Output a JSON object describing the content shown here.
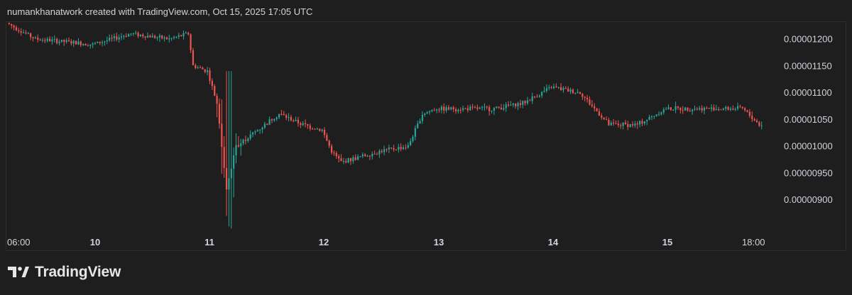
{
  "header": {
    "caption": "numankhanatwork created with TradingView.com, Oct 15, 2025 17:05 UTC"
  },
  "brand": {
    "name": "TradingView",
    "logo_icon": "tradingview-logo-icon"
  },
  "colors": {
    "background": "#1e1e1e",
    "up": "#26a69a",
    "down": "#ef5350",
    "text": "#d1d4dc",
    "border": "#2e2e2e"
  },
  "chart_data": {
    "type": "candlestick",
    "title": "",
    "xlabel": "",
    "ylabel": "",
    "x_ticks": [
      "06:00",
      "10",
      "11",
      "12",
      "13",
      "14",
      "15",
      "18:00"
    ],
    "y_ticks": [
      "0.00001200",
      "0.00001150",
      "0.00001100",
      "0.00001050",
      "0.00001000",
      "0.00000950",
      "0.00000900"
    ],
    "ylim": [
      8.6e-06,
      1.25e-05
    ],
    "x_range": [
      "Oct 9 06:00",
      "Oct 15 ~19:30"
    ],
    "grid": false,
    "price_path": [
      [
        "Oct 9 06:00",
        1.23e-05
      ],
      [
        "Oct 9 08:00",
        1.22e-05
      ],
      [
        "Oct 9 12:00",
        1.2e-05
      ],
      [
        "Oct 10 00:00",
        1.19e-05
      ],
      [
        "Oct 10 08:00",
        1.21e-05
      ],
      [
        "Oct 10 16:00",
        1.2e-05
      ],
      [
        "Oct 10 20:00",
        1.21e-05
      ],
      [
        "Oct 10 21:00",
        1.15e-05
      ],
      [
        "Oct 11 00:00",
        1.14e-05
      ],
      [
        "Oct 11 02:00",
        1.08e-05
      ],
      [
        "Oct 11 04:00",
        9.2e-06
      ],
      [
        "Oct 11 06:00",
        1e-05
      ],
      [
        "Oct 11 12:00",
        1.04e-05
      ],
      [
        "Oct 11 15:00",
        1.06e-05
      ],
      [
        "Oct 11 20:00",
        1.04e-05
      ],
      [
        "Oct 12 00:00",
        1.03e-05
      ],
      [
        "Oct 12 02:00",
        9.9e-06
      ],
      [
        "Oct 12 04:00",
        9.7e-06
      ],
      [
        "Oct 12 12:00",
        9.9e-06
      ],
      [
        "Oct 12 18:00",
        1e-05
      ],
      [
        "Oct 12 21:00",
        1.06e-05
      ],
      [
        "Oct 13 00:00",
        1.07e-05
      ],
      [
        "Oct 13 12:00",
        1.07e-05
      ],
      [
        "Oct 13 18:00",
        1.08e-05
      ],
      [
        "Oct 14 00:00",
        1.11e-05
      ],
      [
        "Oct 14 06:00",
        1.1e-05
      ],
      [
        "Oct 14 10:00",
        1.06e-05
      ],
      [
        "Oct 14 12:00",
        1.04e-05
      ],
      [
        "Oct 14 18:00",
        1.04e-05
      ],
      [
        "Oct 15 00:00",
        1.07e-05
      ],
      [
        "Oct 15 12:00",
        1.07e-05
      ],
      [
        "Oct 15 16:00",
        1.07e-05
      ],
      [
        "Oct 15 19:30",
        1.04e-05
      ]
    ]
  }
}
